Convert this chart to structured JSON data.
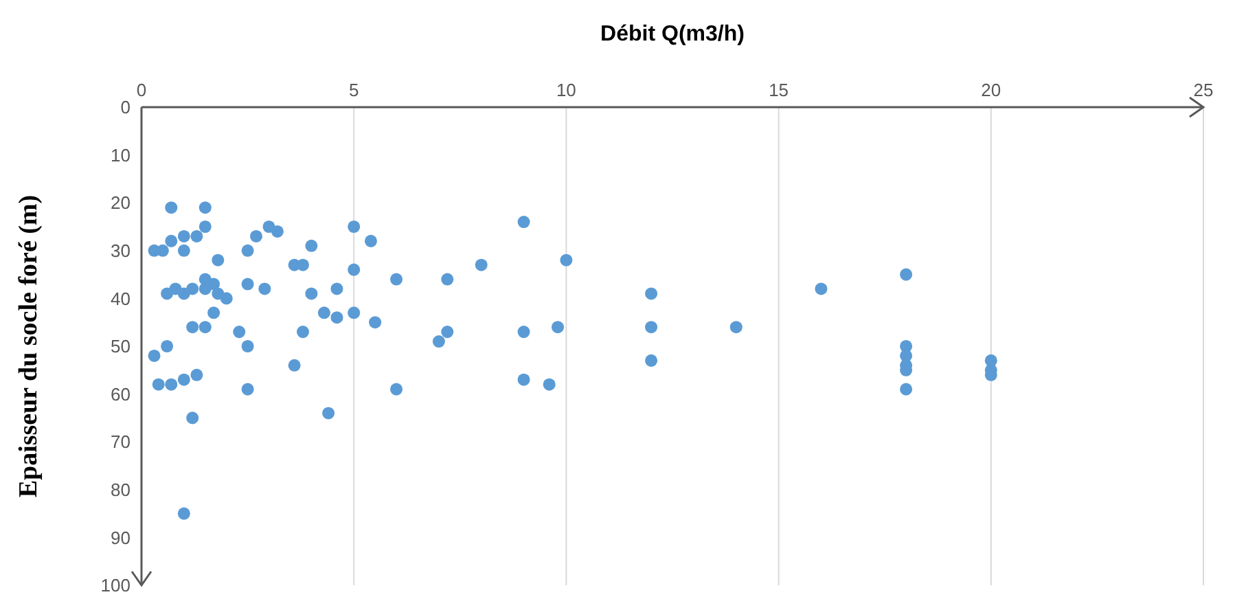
{
  "chart_data": {
    "type": "scatter",
    "xlabel": "Débit Q(m3/h)",
    "ylabel": "Epaisseur du socle foré (m)",
    "xlim": [
      0,
      25
    ],
    "xticks": [
      0,
      5,
      10,
      15,
      20,
      25
    ],
    "ylim": [
      100,
      0
    ],
    "yticks": [
      0,
      10,
      20,
      30,
      40,
      50,
      60,
      70,
      80,
      90,
      100
    ],
    "grid": "x",
    "marker": "circle",
    "x": [
      0.7,
      1.5,
      0.3,
      0.5,
      0.7,
      1,
      1,
      1.3,
      1.5,
      1.8,
      2.5,
      2.7,
      3,
      3.2,
      4,
      5,
      5.4,
      9,
      0.6,
      0.8,
      1,
      1.2,
      1.5,
      1.5,
      1.7,
      1.8,
      2,
      2.5,
      2.9,
      3.6,
      3.8,
      4,
      5,
      4.6,
      6,
      7.2,
      8,
      10,
      1.7,
      1.5,
      1.2,
      2.3,
      2.5,
      3.8,
      4.3,
      4.6,
      5,
      5.5,
      0.3,
      0.6,
      0.4,
      0.7,
      1,
      1.3,
      2.5,
      3.6,
      6,
      7,
      7.2,
      9,
      9,
      9.6,
      9.8,
      12,
      12,
      12,
      14,
      16,
      18,
      18,
      18,
      18,
      18,
      18,
      20,
      20,
      20,
      1.2,
      4.4,
      1
    ],
    "series": [
      {
        "color": "#5b9bd5",
        "values": [
          21,
          21,
          30,
          30,
          28,
          27,
          30,
          27,
          25,
          32,
          30,
          27,
          25,
          26,
          29,
          25,
          28,
          24,
          39,
          38,
          39,
          38,
          36,
          38,
          37,
          39,
          40,
          37,
          38,
          33,
          33,
          39,
          34,
          38,
          36,
          36,
          33,
          32,
          43,
          46,
          46,
          47,
          50,
          47,
          43,
          44,
          43,
          45,
          52,
          50,
          58,
          58,
          57,
          56,
          59,
          54,
          59,
          49,
          47,
          47,
          57,
          58,
          46,
          39,
          46,
          53,
          46,
          38,
          35,
          50,
          52,
          54,
          55,
          59,
          53,
          55,
          56,
          65,
          64,
          85
        ]
      }
    ]
  }
}
